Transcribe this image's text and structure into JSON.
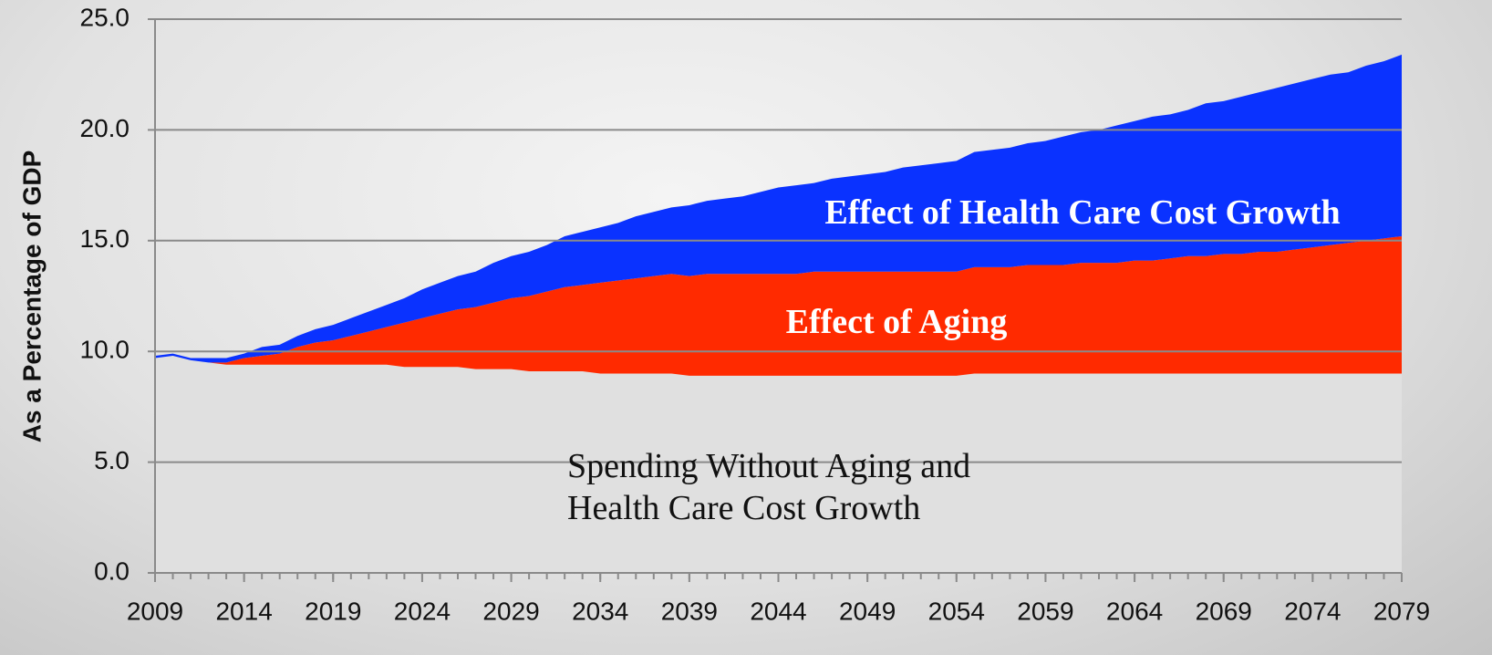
{
  "chart_data": {
    "type": "stacked_area",
    "y_label": "As a Percentage of GDP",
    "x": [
      2009,
      2010,
      2011,
      2012,
      2013,
      2014,
      2015,
      2016,
      2017,
      2018,
      2019,
      2020,
      2021,
      2022,
      2023,
      2024,
      2025,
      2026,
      2027,
      2028,
      2029,
      2030,
      2031,
      2032,
      2033,
      2034,
      2035,
      2036,
      2037,
      2038,
      2039,
      2040,
      2041,
      2042,
      2043,
      2044,
      2045,
      2046,
      2047,
      2048,
      2049,
      2050,
      2051,
      2052,
      2053,
      2054,
      2055,
      2056,
      2057,
      2058,
      2059,
      2060,
      2061,
      2062,
      2063,
      2064,
      2065,
      2066,
      2067,
      2068,
      2069,
      2070,
      2071,
      2072,
      2073,
      2074,
      2075,
      2076,
      2077,
      2078,
      2079
    ],
    "series": [
      {
        "name": "Spending Without Aging and Health Care Cost Growth",
        "color": "#e0e0e0",
        "values": [
          9.7,
          9.8,
          9.6,
          9.5,
          9.4,
          9.4,
          9.4,
          9.4,
          9.4,
          9.4,
          9.4,
          9.4,
          9.4,
          9.4,
          9.3,
          9.3,
          9.3,
          9.3,
          9.2,
          9.2,
          9.2,
          9.1,
          9.1,
          9.1,
          9.1,
          9.0,
          9.0,
          9.0,
          9.0,
          9.0,
          8.9,
          8.9,
          8.9,
          8.9,
          8.9,
          8.9,
          8.9,
          8.9,
          8.9,
          8.9,
          8.9,
          8.9,
          8.9,
          8.9,
          8.9,
          8.9,
          9.0,
          9.0,
          9.0,
          9.0,
          9.0,
          9.0,
          9.0,
          9.0,
          9.0,
          9.0,
          9.0,
          9.0,
          9.0,
          9.0,
          9.0,
          9.0,
          9.0,
          9.0,
          9.0,
          9.0,
          9.0,
          9.0,
          9.0,
          9.0,
          9.0
        ]
      },
      {
        "name": "Effect of Aging",
        "color": "#ff2a00",
        "values": [
          0.0,
          0.0,
          0.0,
          0.0,
          0.1,
          0.3,
          0.4,
          0.5,
          0.8,
          1.0,
          1.1,
          1.3,
          1.5,
          1.7,
          2.0,
          2.2,
          2.4,
          2.6,
          2.8,
          3.0,
          3.2,
          3.4,
          3.6,
          3.8,
          3.9,
          4.1,
          4.2,
          4.3,
          4.4,
          4.5,
          4.5,
          4.6,
          4.6,
          4.6,
          4.6,
          4.6,
          4.6,
          4.7,
          4.7,
          4.7,
          4.7,
          4.7,
          4.7,
          4.7,
          4.7,
          4.7,
          4.8,
          4.8,
          4.8,
          4.9,
          4.9,
          4.9,
          5.0,
          5.0,
          5.0,
          5.1,
          5.1,
          5.2,
          5.3,
          5.3,
          5.4,
          5.4,
          5.5,
          5.5,
          5.6,
          5.7,
          5.8,
          5.9,
          6.0,
          6.1,
          6.2
        ]
      },
      {
        "name": "Effect of Health Care Cost Growth",
        "color": "#0a32ff",
        "values": [
          0.1,
          0.1,
          0.1,
          0.2,
          0.2,
          0.2,
          0.4,
          0.4,
          0.5,
          0.6,
          0.7,
          0.8,
          0.9,
          1.0,
          1.1,
          1.3,
          1.4,
          1.5,
          1.6,
          1.8,
          1.9,
          2.0,
          2.1,
          2.3,
          2.4,
          2.5,
          2.6,
          2.8,
          2.9,
          3.0,
          3.2,
          3.3,
          3.4,
          3.5,
          3.7,
          3.9,
          4.0,
          4.0,
          4.2,
          4.3,
          4.4,
          4.5,
          4.7,
          4.8,
          4.9,
          5.0,
          5.2,
          5.3,
          5.4,
          5.5,
          5.6,
          5.8,
          5.9,
          6.0,
          6.2,
          6.3,
          6.5,
          6.5,
          6.6,
          6.9,
          6.9,
          7.1,
          7.2,
          7.4,
          7.5,
          7.6,
          7.7,
          7.7,
          7.9,
          8.0,
          8.2
        ]
      }
    ],
    "xlim": [
      2009,
      2079
    ],
    "xticks": [
      2009,
      2014,
      2019,
      2024,
      2029,
      2034,
      2039,
      2044,
      2049,
      2054,
      2059,
      2064,
      2069,
      2074,
      2079
    ],
    "ylim": [
      0,
      25
    ],
    "yticks": [
      {
        "value": 0,
        "label": "0.0"
      },
      {
        "value": 5,
        "label": "5.0"
      },
      {
        "value": 10,
        "label": "10.0"
      },
      {
        "value": 15,
        "label": "15.0"
      },
      {
        "value": 20,
        "label": "20.0"
      },
      {
        "value": 25,
        "label": "25.0"
      }
    ],
    "grid": true
  }
}
